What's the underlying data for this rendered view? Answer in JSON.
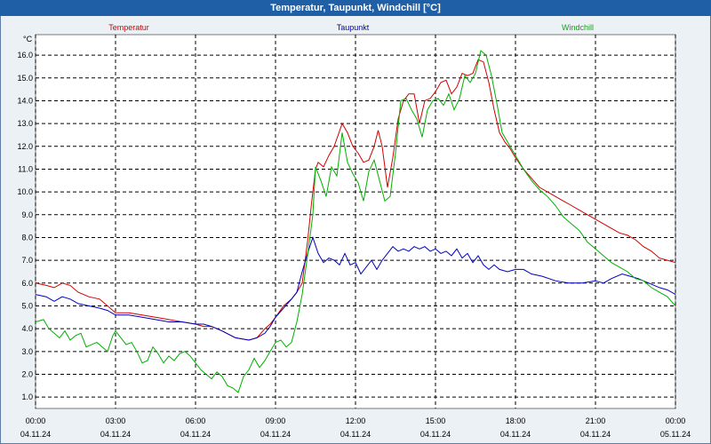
{
  "window": {
    "title": "Temperatur, Taupunkt, Windchill [°C]"
  },
  "chart_data": {
    "type": "line",
    "unit_label": "°C",
    "ylim": [
      0.5,
      16.9
    ],
    "xlim": [
      0,
      24
    ],
    "y_ticks": [
      1.0,
      2.0,
      3.0,
      4.0,
      5.0,
      6.0,
      7.0,
      8.0,
      9.0,
      10.0,
      11.0,
      12.0,
      13.0,
      14.0,
      15.0,
      16.0
    ],
    "x_ticks": [
      {
        "x": 0,
        "time": "00:00",
        "date": "04.11.24"
      },
      {
        "x": 3,
        "time": "03:00",
        "date": "04.11.24"
      },
      {
        "x": 6,
        "time": "06:00",
        "date": "04.11.24"
      },
      {
        "x": 9,
        "time": "09:00",
        "date": "04.11.24"
      },
      {
        "x": 12,
        "time": "12:00",
        "date": "04.11.24"
      },
      {
        "x": 15,
        "time": "15:00",
        "date": "04.11.24"
      },
      {
        "x": 18,
        "time": "18:00",
        "date": "04.11.24"
      },
      {
        "x": 21,
        "time": "21:00",
        "date": "04.11.24"
      },
      {
        "x": 24,
        "time": "00:00",
        "date": "05.11.24"
      }
    ],
    "series": [
      {
        "name": "Temperatur",
        "color": "#D00000",
        "legend_pos": "left",
        "points": [
          [
            0,
            6.0
          ],
          [
            0.4,
            5.9
          ],
          [
            0.7,
            5.8
          ],
          [
            1,
            6.0
          ],
          [
            1.3,
            5.9
          ],
          [
            1.6,
            5.6
          ],
          [
            2,
            5.4
          ],
          [
            2.4,
            5.3
          ],
          [
            2.7,
            5.0
          ],
          [
            3,
            4.7
          ],
          [
            3.5,
            4.7
          ],
          [
            4,
            4.6
          ],
          [
            4.5,
            4.5
          ],
          [
            5,
            4.4
          ],
          [
            5.5,
            4.3
          ],
          [
            6,
            4.2
          ],
          [
            6.3,
            4.1
          ],
          [
            6.6,
            4.1
          ],
          [
            7,
            3.9
          ],
          [
            7.5,
            3.6
          ],
          [
            8,
            3.5
          ],
          [
            8.3,
            3.6
          ],
          [
            8.6,
            4.0
          ],
          [
            8.8,
            4.2
          ],
          [
            9,
            4.5
          ],
          [
            9.3,
            5.0
          ],
          [
            9.6,
            5.3
          ],
          [
            9.8,
            5.6
          ],
          [
            10.0,
            6.0
          ],
          [
            10.2,
            7.8
          ],
          [
            10.35,
            9.5
          ],
          [
            10.5,
            11.0
          ],
          [
            10.6,
            11.3
          ],
          [
            10.8,
            11.1
          ],
          [
            11.0,
            11.6
          ],
          [
            11.2,
            12.0
          ],
          [
            11.35,
            12.5
          ],
          [
            11.5,
            13.0
          ],
          [
            11.7,
            12.6
          ],
          [
            11.9,
            12.0
          ],
          [
            12.1,
            11.7
          ],
          [
            12.3,
            11.3
          ],
          [
            12.5,
            11.4
          ],
          [
            12.7,
            12.0
          ],
          [
            12.85,
            12.7
          ],
          [
            13.0,
            12.0
          ],
          [
            13.2,
            10.2
          ],
          [
            13.4,
            11.5
          ],
          [
            13.6,
            13.2
          ],
          [
            13.8,
            14.0
          ],
          [
            14.0,
            14.3
          ],
          [
            14.2,
            14.3
          ],
          [
            14.4,
            13.0
          ],
          [
            14.6,
            14.0
          ],
          [
            14.8,
            14.1
          ],
          [
            15.0,
            14.4
          ],
          [
            15.2,
            14.8
          ],
          [
            15.4,
            14.9
          ],
          [
            15.6,
            14.3
          ],
          [
            15.8,
            14.6
          ],
          [
            16.0,
            15.2
          ],
          [
            16.2,
            15.1
          ],
          [
            16.4,
            15.2
          ],
          [
            16.6,
            15.8
          ],
          [
            16.8,
            15.7
          ],
          [
            17.0,
            14.8
          ],
          [
            17.2,
            13.6
          ],
          [
            17.4,
            12.6
          ],
          [
            17.6,
            12.2
          ],
          [
            17.8,
            11.9
          ],
          [
            18,
            11.5
          ],
          [
            18.3,
            11.0
          ],
          [
            18.6,
            10.6
          ],
          [
            18.9,
            10.2
          ],
          [
            19.2,
            10.0
          ],
          [
            19.5,
            9.8
          ],
          [
            19.8,
            9.6
          ],
          [
            20.1,
            9.4
          ],
          [
            20.4,
            9.2
          ],
          [
            20.7,
            9.0
          ],
          [
            21,
            8.8
          ],
          [
            21.3,
            8.6
          ],
          [
            21.6,
            8.4
          ],
          [
            21.9,
            8.2
          ],
          [
            22.2,
            8.1
          ],
          [
            22.5,
            7.9
          ],
          [
            22.8,
            7.6
          ],
          [
            23.1,
            7.4
          ],
          [
            23.4,
            7.1
          ],
          [
            23.7,
            7.0
          ],
          [
            24,
            6.9
          ]
        ]
      },
      {
        "name": "Taupunkt",
        "color": "#0000C0",
        "legend_pos": "center",
        "points": [
          [
            0,
            5.5
          ],
          [
            0.4,
            5.4
          ],
          [
            0.7,
            5.2
          ],
          [
            1,
            5.4
          ],
          [
            1.3,
            5.3
          ],
          [
            1.6,
            5.1
          ],
          [
            2,
            5.0
          ],
          [
            2.4,
            4.9
          ],
          [
            2.7,
            4.8
          ],
          [
            3,
            4.6
          ],
          [
            3.5,
            4.6
          ],
          [
            4,
            4.5
          ],
          [
            4.5,
            4.4
          ],
          [
            5,
            4.3
          ],
          [
            5.5,
            4.3
          ],
          [
            6,
            4.2
          ],
          [
            6.3,
            4.2
          ],
          [
            6.6,
            4.1
          ],
          [
            7,
            3.9
          ],
          [
            7.5,
            3.6
          ],
          [
            8,
            3.5
          ],
          [
            8.3,
            3.6
          ],
          [
            8.6,
            3.8
          ],
          [
            8.8,
            4.1
          ],
          [
            9,
            4.5
          ],
          [
            9.3,
            4.9
          ],
          [
            9.6,
            5.3
          ],
          [
            9.8,
            5.6
          ],
          [
            10.0,
            6.5
          ],
          [
            10.2,
            7.3
          ],
          [
            10.4,
            8.0
          ],
          [
            10.6,
            7.3
          ],
          [
            10.8,
            6.9
          ],
          [
            11.0,
            7.1
          ],
          [
            11.2,
            7.0
          ],
          [
            11.4,
            6.8
          ],
          [
            11.6,
            7.3
          ],
          [
            11.8,
            6.8
          ],
          [
            12.0,
            6.9
          ],
          [
            12.2,
            6.4
          ],
          [
            12.4,
            6.7
          ],
          [
            12.6,
            7.0
          ],
          [
            12.8,
            6.6
          ],
          [
            13.0,
            7.0
          ],
          [
            13.2,
            7.3
          ],
          [
            13.4,
            7.6
          ],
          [
            13.6,
            7.4
          ],
          [
            13.8,
            7.5
          ],
          [
            14.0,
            7.4
          ],
          [
            14.2,
            7.6
          ],
          [
            14.4,
            7.5
          ],
          [
            14.6,
            7.6
          ],
          [
            14.8,
            7.4
          ],
          [
            15.0,
            7.5
          ],
          [
            15.2,
            7.3
          ],
          [
            15.4,
            7.4
          ],
          [
            15.6,
            7.2
          ],
          [
            15.8,
            7.5
          ],
          [
            16.0,
            7.1
          ],
          [
            16.2,
            7.3
          ],
          [
            16.4,
            6.9
          ],
          [
            16.6,
            7.2
          ],
          [
            16.8,
            6.8
          ],
          [
            17.0,
            6.6
          ],
          [
            17.2,
            6.8
          ],
          [
            17.4,
            6.6
          ],
          [
            17.7,
            6.5
          ],
          [
            18,
            6.6
          ],
          [
            18.3,
            6.6
          ],
          [
            18.6,
            6.4
          ],
          [
            19,
            6.3
          ],
          [
            19.5,
            6.1
          ],
          [
            20,
            6.0
          ],
          [
            20.5,
            6.0
          ],
          [
            21,
            6.1
          ],
          [
            21.3,
            6.0
          ],
          [
            21.6,
            6.2
          ],
          [
            22,
            6.4
          ],
          [
            22.3,
            6.3
          ],
          [
            22.6,
            6.2
          ],
          [
            23,
            6.0
          ],
          [
            23.4,
            5.8
          ],
          [
            23.7,
            5.7
          ],
          [
            24,
            5.5
          ]
        ]
      },
      {
        "name": "Windchill",
        "color": "#00B000",
        "legend_pos": "right",
        "points": [
          [
            0,
            4.3
          ],
          [
            0.3,
            4.4
          ],
          [
            0.5,
            4.0
          ],
          [
            0.7,
            3.8
          ],
          [
            0.9,
            3.6
          ],
          [
            1.1,
            3.9
          ],
          [
            1.3,
            3.5
          ],
          [
            1.5,
            3.7
          ],
          [
            1.7,
            3.8
          ],
          [
            1.9,
            3.2
          ],
          [
            2.1,
            3.3
          ],
          [
            2.3,
            3.4
          ],
          [
            2.5,
            3.2
          ],
          [
            2.7,
            3.0
          ],
          [
            2.9,
            3.7
          ],
          [
            3.0,
            3.9
          ],
          [
            3.2,
            3.6
          ],
          [
            3.4,
            3.3
          ],
          [
            3.6,
            3.4
          ],
          [
            3.8,
            3.0
          ],
          [
            4.0,
            2.5
          ],
          [
            4.2,
            2.6
          ],
          [
            4.4,
            3.2
          ],
          [
            4.6,
            2.9
          ],
          [
            4.8,
            2.5
          ],
          [
            5.0,
            2.8
          ],
          [
            5.2,
            2.6
          ],
          [
            5.4,
            2.9
          ],
          [
            5.6,
            3.0
          ],
          [
            5.8,
            2.8
          ],
          [
            6.0,
            2.5
          ],
          [
            6.2,
            2.2
          ],
          [
            6.4,
            2.0
          ],
          [
            6.6,
            1.8
          ],
          [
            6.8,
            2.1
          ],
          [
            7.0,
            1.9
          ],
          [
            7.2,
            1.5
          ],
          [
            7.4,
            1.4
          ],
          [
            7.6,
            1.2
          ],
          [
            7.8,
            1.9
          ],
          [
            8.0,
            2.2
          ],
          [
            8.2,
            2.7
          ],
          [
            8.4,
            2.3
          ],
          [
            8.6,
            2.6
          ],
          [
            8.8,
            3.0
          ],
          [
            9.0,
            3.4
          ],
          [
            9.2,
            3.5
          ],
          [
            9.4,
            3.2
          ],
          [
            9.6,
            3.4
          ],
          [
            9.8,
            4.3
          ],
          [
            10.0,
            5.5
          ],
          [
            10.2,
            7.2
          ],
          [
            10.4,
            9.0
          ],
          [
            10.5,
            11.1
          ],
          [
            10.7,
            10.5
          ],
          [
            10.9,
            9.8
          ],
          [
            11.1,
            11.1
          ],
          [
            11.3,
            10.7
          ],
          [
            11.5,
            12.6
          ],
          [
            11.7,
            11.3
          ],
          [
            11.9,
            10.8
          ],
          [
            12.1,
            10.4
          ],
          [
            12.3,
            9.6
          ],
          [
            12.5,
            10.9
          ],
          [
            12.7,
            11.4
          ],
          [
            12.9,
            10.5
          ],
          [
            13.1,
            9.6
          ],
          [
            13.3,
            9.8
          ],
          [
            13.5,
            11.7
          ],
          [
            13.7,
            14.0
          ],
          [
            13.9,
            14.1
          ],
          [
            14.1,
            13.6
          ],
          [
            14.3,
            13.2
          ],
          [
            14.5,
            12.4
          ],
          [
            14.7,
            13.6
          ],
          [
            14.9,
            14.0
          ],
          [
            15.1,
            14.1
          ],
          [
            15.3,
            13.8
          ],
          [
            15.5,
            14.3
          ],
          [
            15.7,
            13.6
          ],
          [
            15.9,
            14.1
          ],
          [
            16.1,
            15.1
          ],
          [
            16.3,
            14.8
          ],
          [
            16.5,
            15.2
          ],
          [
            16.7,
            16.2
          ],
          [
            16.9,
            16.0
          ],
          [
            17.1,
            15.1
          ],
          [
            17.3,
            13.9
          ],
          [
            17.5,
            12.6
          ],
          [
            17.7,
            12.2
          ],
          [
            18,
            11.6
          ],
          [
            18.3,
            11.0
          ],
          [
            18.6,
            10.5
          ],
          [
            18.9,
            10.1
          ],
          [
            19.2,
            9.8
          ],
          [
            19.5,
            9.4
          ],
          [
            19.8,
            8.9
          ],
          [
            20.1,
            8.6
          ],
          [
            20.4,
            8.3
          ],
          [
            20.7,
            7.8
          ],
          [
            21.0,
            7.5
          ],
          [
            21.3,
            7.2
          ],
          [
            21.6,
            6.9
          ],
          [
            21.9,
            6.7
          ],
          [
            22.2,
            6.5
          ],
          [
            22.5,
            6.2
          ],
          [
            22.8,
            6.1
          ],
          [
            23.1,
            5.8
          ],
          [
            23.4,
            5.6
          ],
          [
            23.7,
            5.4
          ],
          [
            24,
            5.0
          ]
        ]
      }
    ]
  }
}
